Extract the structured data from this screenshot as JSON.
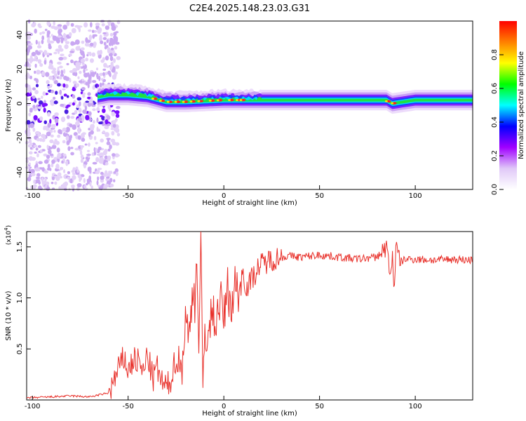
{
  "figure": {
    "title": "C2E4.2025.148.23.03.G31"
  },
  "chart_data": [
    {
      "type": "heatmap",
      "xlabel": "Height of straight line (km)",
      "ylabel": "Frequency (Hz)",
      "xlim": [
        -103,
        130
      ],
      "ylim": [
        -50,
        48
      ],
      "xticks": [
        "-100",
        "-50",
        "0",
        "50",
        "100"
      ],
      "xtick_values": [
        -100,
        -50,
        0,
        50,
        100
      ],
      "yticks": [
        "40",
        "20",
        "0",
        "-20",
        "-40"
      ],
      "ytick_values": [
        40,
        20,
        0,
        -20,
        -40
      ],
      "colorbar": {
        "label": "Normalized spectral amplitude",
        "range": [
          0,
          1
        ],
        "ticks": [
          "0.0",
          "0.2",
          "0.4",
          "0.6",
          "0.8"
        ],
        "tick_values": [
          0,
          0.2,
          0.4,
          0.6,
          0.8
        ],
        "colors": [
          "#ffffff",
          "#e0c8f8",
          "#a000ff",
          "#0000ff",
          "#00ffff",
          "#00ff00",
          "#ffff00",
          "#ff8000",
          "#ff0000"
        ]
      },
      "ridge_center_hz": [
        [
          -100,
          3
        ],
        [
          -90,
          3
        ],
        [
          -80,
          2
        ],
        [
          -70,
          3
        ],
        [
          -60,
          5
        ],
        [
          -50,
          5
        ],
        [
          -40,
          4
        ],
        [
          -30,
          1
        ],
        [
          -20,
          1
        ],
        [
          -10,
          1.5
        ],
        [
          0,
          2
        ],
        [
          20,
          2
        ],
        [
          50,
          2
        ],
        [
          85,
          2
        ],
        [
          88,
          0
        ],
        [
          100,
          2
        ],
        [
          130,
          2
        ]
      ],
      "scatter_region_km": [
        -103,
        -55
      ],
      "grid": false
    },
    {
      "type": "line",
      "xlabel": "Height of straight line (km)",
      "ylabel": "SNR (10 * v/v)",
      "y_multiplier": "(x10",
      "y_multiplier_exp": "4",
      "y_multiplier_close": ")",
      "xlim": [
        -103,
        130
      ],
      "ylim": [
        0,
        1.65
      ],
      "xticks": [
        "-100",
        "-50",
        "0",
        "50",
        "100"
      ],
      "xtick_values": [
        -100,
        -50,
        0,
        50,
        100
      ],
      "yticks": [
        "0.5",
        "1.0",
        "1.5"
      ],
      "ytick_values": [
        0.5,
        1.0,
        1.5
      ],
      "line_color": "#e8302a",
      "series": [
        {
          "x": [
            -103,
            -90,
            -80,
            -70,
            -65,
            -60,
            -58,
            -55,
            -52,
            -50,
            -47,
            -44,
            -42,
            -40,
            -37,
            -35,
            -32,
            -30,
            -28,
            -25,
            -22,
            -20,
            -18,
            -16,
            -15,
            -14,
            -13,
            -12,
            -11,
            -10,
            -8,
            -6,
            -4,
            -2,
            0,
            2,
            4,
            6,
            8,
            10,
            12,
            15,
            18,
            20,
            25,
            30,
            35,
            40,
            50,
            60,
            70,
            80,
            85,
            87,
            88,
            89,
            90,
            92,
            95,
            100,
            110,
            120,
            130
          ],
          "y": [
            0.02,
            0.03,
            0.04,
            0.03,
            0.05,
            0.07,
            0.15,
            0.3,
            0.42,
            0.28,
            0.4,
            0.36,
            0.25,
            0.45,
            0.2,
            0.32,
            0.15,
            0.12,
            0.18,
            0.42,
            0.3,
            0.8,
            0.6,
            1.2,
            0.9,
            1.5,
            0.4,
            1.63,
            0.05,
            0.7,
            0.6,
            0.9,
            0.75,
            1.0,
            0.8,
            1.1,
            0.9,
            1.15,
            1.05,
            1.25,
            1.1,
            1.2,
            1.3,
            1.33,
            1.38,
            1.4,
            1.41,
            1.4,
            1.42,
            1.4,
            1.38,
            1.4,
            1.5,
            1.2,
            1.45,
            1.1,
            1.5,
            1.35,
            1.38,
            1.38,
            1.37,
            1.38,
            1.37
          ]
        }
      ],
      "grid": false
    }
  ]
}
